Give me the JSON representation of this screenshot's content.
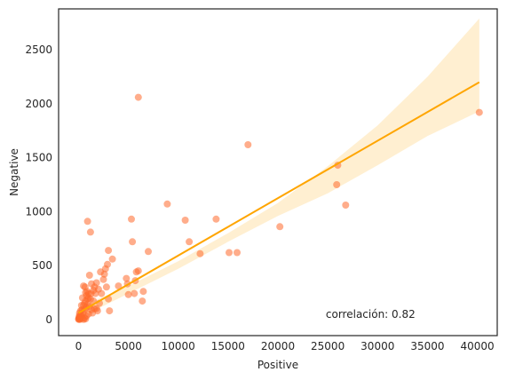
{
  "chart_data": {
    "type": "scatter",
    "title": "",
    "xlabel": "Positive",
    "ylabel": "Negative",
    "xlim": [
      -2000,
      42000
    ],
    "ylim": [
      -150,
      2880
    ],
    "xticks": [
      0,
      5000,
      10000,
      15000,
      20000,
      25000,
      30000,
      35000,
      40000
    ],
    "yticks": [
      0,
      500,
      1000,
      1500,
      2000,
      2500
    ],
    "grid": false,
    "colors": {
      "points": "#ff6a2b",
      "line": "#ffa500",
      "band": "#ffe5b3",
      "axes": "#262626"
    },
    "annotation": {
      "text": "correlación: 0.82",
      "x": 24800,
      "y": 15
    },
    "regression": {
      "x_start": 0,
      "y_start": 60,
      "x_end": 40200,
      "y_end": 2200
    },
    "confidence_band": {
      "upper": [
        [
          0,
          110
        ],
        [
          5000,
          310
        ],
        [
          10000,
          540
        ],
        [
          15000,
          800
        ],
        [
          20000,
          1080
        ],
        [
          25000,
          1420
        ],
        [
          30000,
          1800
        ],
        [
          35000,
          2250
        ],
        [
          40200,
          2790
        ]
      ],
      "lower": [
        [
          0,
          10
        ],
        [
          5000,
          240
        ],
        [
          10000,
          470
        ],
        [
          15000,
          720
        ],
        [
          20000,
          960
        ],
        [
          25000,
          1170
        ],
        [
          30000,
          1430
        ],
        [
          35000,
          1700
        ],
        [
          40200,
          1930
        ]
      ]
    },
    "points": [
      [
        40200,
        1920
      ],
      [
        26000,
        1430
      ],
      [
        26800,
        1060
      ],
      [
        25900,
        1250
      ],
      [
        20200,
        860
      ],
      [
        17000,
        1620
      ],
      [
        15900,
        620
      ],
      [
        15100,
        620
      ],
      [
        13800,
        930
      ],
      [
        12200,
        610
      ],
      [
        11100,
        720
      ],
      [
        10700,
        920
      ],
      [
        8900,
        1070
      ],
      [
        7000,
        630
      ],
      [
        6500,
        260
      ],
      [
        6400,
        170
      ],
      [
        6000,
        2060
      ],
      [
        6000,
        450
      ],
      [
        5800,
        440
      ],
      [
        5700,
        360
      ],
      [
        5400,
        720
      ],
      [
        5300,
        930
      ],
      [
        5600,
        240
      ],
      [
        5000,
        230
      ],
      [
        4800,
        380
      ],
      [
        4900,
        330
      ],
      [
        4000,
        310
      ],
      [
        3400,
        560
      ],
      [
        3000,
        640
      ],
      [
        2900,
        510
      ],
      [
        2700,
        470
      ],
      [
        2600,
        420
      ],
      [
        2800,
        300
      ],
      [
        3000,
        190
      ],
      [
        3100,
        80
      ],
      [
        2500,
        370
      ],
      [
        2200,
        440
      ],
      [
        2000,
        280
      ],
      [
        1800,
        340
      ],
      [
        1600,
        300
      ],
      [
        1300,
        330
      ],
      [
        1100,
        410
      ],
      [
        900,
        910
      ],
      [
        1200,
        810
      ],
      [
        1500,
        270
      ],
      [
        1700,
        240
      ],
      [
        1500,
        170
      ],
      [
        1800,
        100
      ],
      [
        1200,
        190
      ],
      [
        1000,
        240
      ],
      [
        800,
        220
      ],
      [
        700,
        250
      ],
      [
        500,
        310
      ],
      [
        600,
        150
      ],
      [
        400,
        200
      ],
      [
        300,
        130
      ],
      [
        200,
        80
      ],
      [
        100,
        60
      ],
      [
        50,
        20
      ],
      [
        0,
        5
      ],
      [
        150,
        0
      ],
      [
        300,
        30
      ],
      [
        450,
        60
      ],
      [
        600,
        90
      ],
      [
        750,
        110
      ],
      [
        900,
        140
      ],
      [
        1100,
        120
      ],
      [
        1300,
        90
      ],
      [
        1400,
        60
      ],
      [
        1000,
        50
      ],
      [
        800,
        30
      ],
      [
        600,
        15
      ],
      [
        400,
        10
      ],
      [
        250,
        40
      ],
      [
        350,
        90
      ],
      [
        500,
        130
      ],
      [
        700,
        170
      ],
      [
        900,
        190
      ],
      [
        1600,
        100
      ],
      [
        1900,
        80
      ],
      [
        2100,
        150
      ],
      [
        2300,
        240
      ],
      [
        100,
        5
      ],
      [
        200,
        15
      ],
      [
        20,
        0
      ],
      [
        60,
        10
      ],
      [
        120,
        25
      ],
      [
        80,
        35
      ],
      [
        500,
        0
      ],
      [
        700,
        5
      ],
      [
        1000,
        200
      ],
      [
        850,
        260
      ],
      [
        650,
        300
      ],
      [
        1250,
        240
      ]
    ]
  }
}
